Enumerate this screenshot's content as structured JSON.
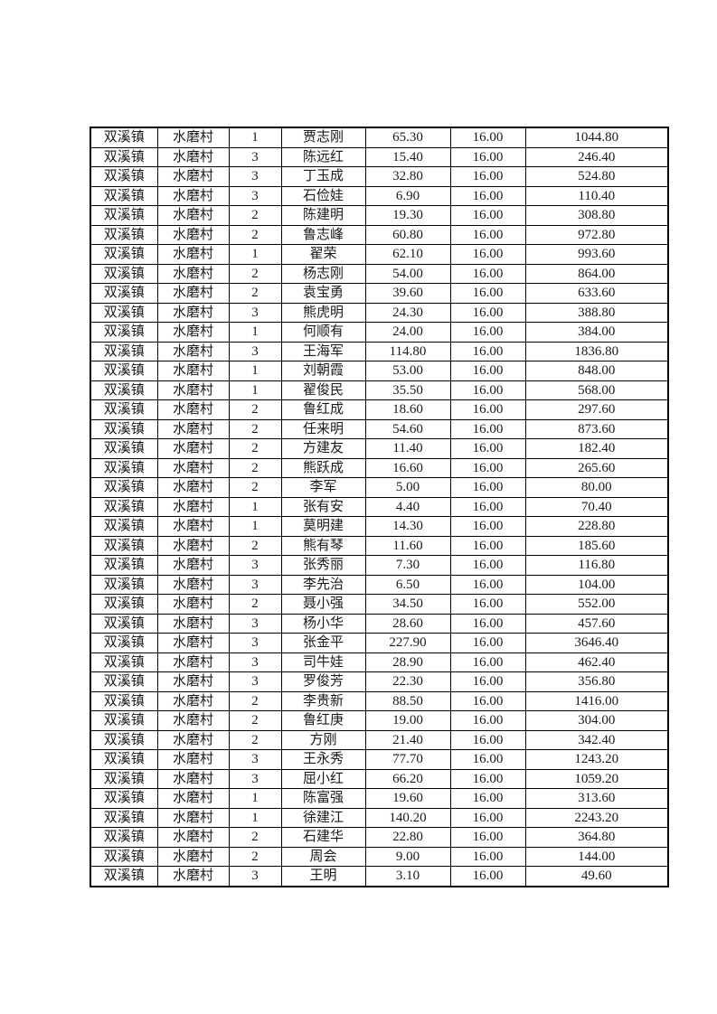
{
  "page": {
    "background_color": "#ffffff",
    "text_color": "#1a1a1a",
    "border_color": "#000000"
  },
  "table": {
    "column_keys": [
      "town",
      "village",
      "group",
      "name",
      "quantity",
      "unit_price",
      "amount"
    ],
    "rows": [
      [
        "双溪镇",
        "水磨村",
        "1",
        "贾志刚",
        "65.30",
        "16.00",
        "1044.80"
      ],
      [
        "双溪镇",
        "水磨村",
        "3",
        "陈远红",
        "15.40",
        "16.00",
        "246.40"
      ],
      [
        "双溪镇",
        "水磨村",
        "3",
        "丁玉成",
        "32.80",
        "16.00",
        "524.80"
      ],
      [
        "双溪镇",
        "水磨村",
        "3",
        "石俭娃",
        "6.90",
        "16.00",
        "110.40"
      ],
      [
        "双溪镇",
        "水磨村",
        "2",
        "陈建明",
        "19.30",
        "16.00",
        "308.80"
      ],
      [
        "双溪镇",
        "水磨村",
        "2",
        "鲁志峰",
        "60.80",
        "16.00",
        "972.80"
      ],
      [
        "双溪镇",
        "水磨村",
        "1",
        "翟荣",
        "62.10",
        "16.00",
        "993.60"
      ],
      [
        "双溪镇",
        "水磨村",
        "2",
        "杨志刚",
        "54.00",
        "16.00",
        "864.00"
      ],
      [
        "双溪镇",
        "水磨村",
        "2",
        "袁宝勇",
        "39.60",
        "16.00",
        "633.60"
      ],
      [
        "双溪镇",
        "水磨村",
        "3",
        "熊虎明",
        "24.30",
        "16.00",
        "388.80"
      ],
      [
        "双溪镇",
        "水磨村",
        "1",
        "何顺有",
        "24.00",
        "16.00",
        "384.00"
      ],
      [
        "双溪镇",
        "水磨村",
        "3",
        "王海军",
        "114.80",
        "16.00",
        "1836.80"
      ],
      [
        "双溪镇",
        "水磨村",
        "1",
        "刘朝霞",
        "53.00",
        "16.00",
        "848.00"
      ],
      [
        "双溪镇",
        "水磨村",
        "1",
        "翟俊民",
        "35.50",
        "16.00",
        "568.00"
      ],
      [
        "双溪镇",
        "水磨村",
        "2",
        "鲁红成",
        "18.60",
        "16.00",
        "297.60"
      ],
      [
        "双溪镇",
        "水磨村",
        "2",
        "任来明",
        "54.60",
        "16.00",
        "873.60"
      ],
      [
        "双溪镇",
        "水磨村",
        "2",
        "方建友",
        "11.40",
        "16.00",
        "182.40"
      ],
      [
        "双溪镇",
        "水磨村",
        "2",
        "熊跃成",
        "16.60",
        "16.00",
        "265.60"
      ],
      [
        "双溪镇",
        "水磨村",
        "2",
        "李军",
        "5.00",
        "16.00",
        "80.00"
      ],
      [
        "双溪镇",
        "水磨村",
        "1",
        "张有安",
        "4.40",
        "16.00",
        "70.40"
      ],
      [
        "双溪镇",
        "水磨村",
        "1",
        "莫明建",
        "14.30",
        "16.00",
        "228.80"
      ],
      [
        "双溪镇",
        "水磨村",
        "2",
        "熊有琴",
        "11.60",
        "16.00",
        "185.60"
      ],
      [
        "双溪镇",
        "水磨村",
        "3",
        "张秀丽",
        "7.30",
        "16.00",
        "116.80"
      ],
      [
        "双溪镇",
        "水磨村",
        "3",
        "李先治",
        "6.50",
        "16.00",
        "104.00"
      ],
      [
        "双溪镇",
        "水磨村",
        "2",
        "聂小强",
        "34.50",
        "16.00",
        "552.00"
      ],
      [
        "双溪镇",
        "水磨村",
        "3",
        "杨小华",
        "28.60",
        "16.00",
        "457.60"
      ],
      [
        "双溪镇",
        "水磨村",
        "3",
        "张金平",
        "227.90",
        "16.00",
        "3646.40"
      ],
      [
        "双溪镇",
        "水磨村",
        "3",
        "司牛娃",
        "28.90",
        "16.00",
        "462.40"
      ],
      [
        "双溪镇",
        "水磨村",
        "3",
        "罗俊芳",
        "22.30",
        "16.00",
        "356.80"
      ],
      [
        "双溪镇",
        "水磨村",
        "2",
        "李贵新",
        "88.50",
        "16.00",
        "1416.00"
      ],
      [
        "双溪镇",
        "水磨村",
        "2",
        "鲁红庚",
        "19.00",
        "16.00",
        "304.00"
      ],
      [
        "双溪镇",
        "水磨村",
        "2",
        "方刚",
        "21.40",
        "16.00",
        "342.40"
      ],
      [
        "双溪镇",
        "水磨村",
        "3",
        "王永秀",
        "77.70",
        "16.00",
        "1243.20"
      ],
      [
        "双溪镇",
        "水磨村",
        "3",
        "屈小红",
        "66.20",
        "16.00",
        "1059.20"
      ],
      [
        "双溪镇",
        "水磨村",
        "1",
        "陈富强",
        "19.60",
        "16.00",
        "313.60"
      ],
      [
        "双溪镇",
        "水磨村",
        "1",
        "徐建江",
        "140.20",
        "16.00",
        "2243.20"
      ],
      [
        "双溪镇",
        "水磨村",
        "2",
        "石建华",
        "22.80",
        "16.00",
        "364.80"
      ],
      [
        "双溪镇",
        "水磨村",
        "2",
        "周会",
        "9.00",
        "16.00",
        "144.00"
      ],
      [
        "双溪镇",
        "水磨村",
        "3",
        "王明",
        "3.10",
        "16.00",
        "49.60"
      ]
    ]
  }
}
